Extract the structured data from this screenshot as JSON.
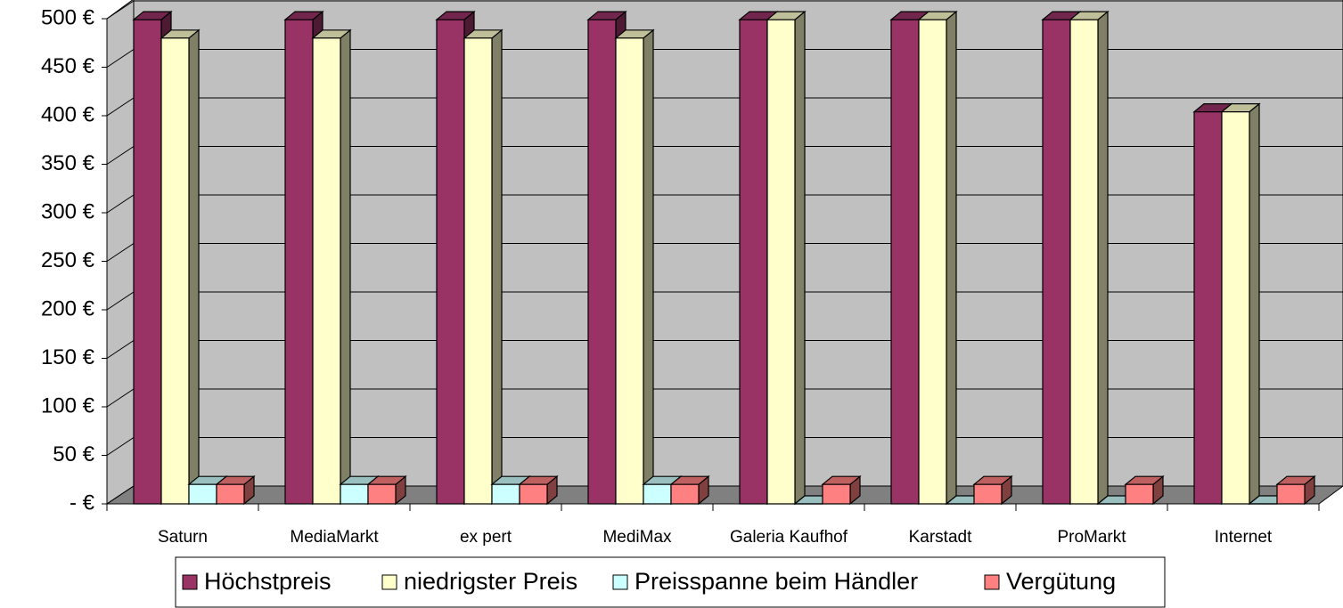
{
  "chart_data": {
    "type": "bar3d",
    "categories": [
      "Saturn",
      "MediaMarkt",
      "ex pert",
      "MediMax",
      "Galeria Kaufhof",
      "Karstadt",
      "ProMarkt",
      "Internet"
    ],
    "series": [
      {
        "name": "Höchstpreis",
        "color": "#993366",
        "values": [
          499,
          499,
          499,
          499,
          499,
          499,
          499,
          404
        ]
      },
      {
        "name": "niedrigster Preis",
        "color": "#ffffcc",
        "values": [
          480,
          480,
          480,
          480,
          499,
          499,
          499,
          404
        ]
      },
      {
        "name": "Preisspanne beim Händler",
        "color": "#ccffff",
        "values": [
          20,
          20,
          20,
          20,
          0,
          0,
          0,
          0
        ]
      },
      {
        "name": "Vergütung",
        "color": "#ff8080",
        "values": [
          20,
          20,
          20,
          20,
          20,
          20,
          20,
          20
        ]
      }
    ],
    "ylim": [
      0,
      500
    ],
    "yticks": [
      {
        "value": 0,
        "label": "- €"
      },
      {
        "value": 50,
        "label": "50 €"
      },
      {
        "value": 100,
        "label": "100 €"
      },
      {
        "value": 150,
        "label": "150 €"
      },
      {
        "value": 200,
        "label": "200 €"
      },
      {
        "value": 250,
        "label": "250 €"
      },
      {
        "value": 300,
        "label": "300 €"
      },
      {
        "value": 350,
        "label": "350 €"
      },
      {
        "value": 400,
        "label": "400 €"
      },
      {
        "value": 450,
        "label": "450 €"
      },
      {
        "value": 500,
        "label": "500 €"
      }
    ],
    "grid": true
  }
}
